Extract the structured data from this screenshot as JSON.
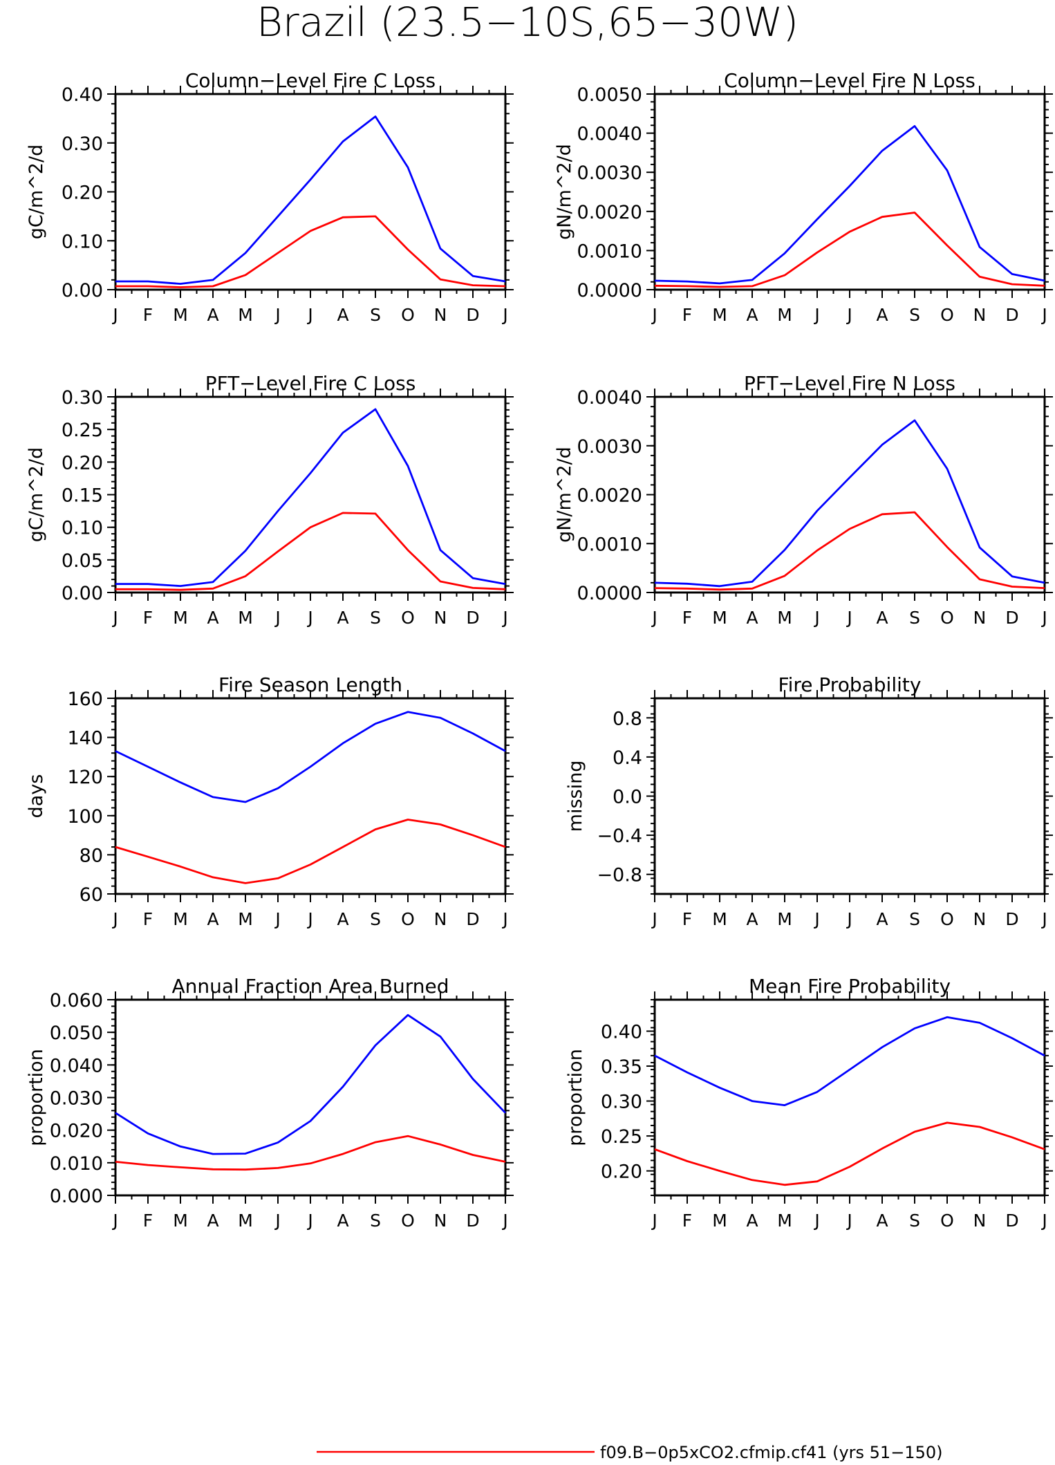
{
  "figure": {
    "title": "Brazil (23.5−10S,65−30W)",
    "legend_label": "f09.B−0p5xCO2.cfmip.cf41 (yrs 51−150)",
    "months": [
      "J",
      "F",
      "M",
      "A",
      "M",
      "J",
      "J",
      "A",
      "S",
      "O",
      "N",
      "D",
      "J"
    ]
  },
  "colors": {
    "blue": "#0000ff",
    "red": "#ff0000",
    "axis": "#000000"
  },
  "chart_data": [
    {
      "type": "line",
      "title": "Column−Level Fire C Loss",
      "ylabel": "gC/m^2/d",
      "ylim": [
        0,
        0.4
      ],
      "yticks": [
        "0.00",
        "0.10",
        "0.20",
        "0.30",
        "0.40"
      ],
      "x": [
        "J",
        "F",
        "M",
        "A",
        "M",
        "J",
        "J",
        "A",
        "S",
        "O",
        "N",
        "D",
        "J"
      ],
      "series": [
        {
          "color": "#0000ff",
          "values": [
            0.017,
            0.017,
            0.012,
            0.02,
            0.075,
            0.15,
            0.225,
            0.303,
            0.354,
            0.25,
            0.084,
            0.028,
            0.017
          ]
        },
        {
          "color": "#ff0000",
          "values": [
            0.007,
            0.007,
            0.005,
            0.007,
            0.03,
            0.075,
            0.12,
            0.148,
            0.15,
            0.082,
            0.021,
            0.009,
            0.007
          ]
        }
      ]
    },
    {
      "type": "line",
      "title": "Column−Level Fire N Loss",
      "ylabel": "gN/m^2/d",
      "ylim": [
        0,
        0.005
      ],
      "yticks": [
        "0.0000",
        "0.0010",
        "0.0020",
        "0.0030",
        "0.0040",
        "0.0050"
      ],
      "x": [
        "J",
        "F",
        "M",
        "A",
        "M",
        "J",
        "J",
        "A",
        "S",
        "O",
        "N",
        "D",
        "J"
      ],
      "series": [
        {
          "color": "#0000ff",
          "values": [
            0.00023,
            0.00021,
            0.00016,
            0.00025,
            0.00093,
            0.0018,
            0.00265,
            0.00355,
            0.00418,
            0.00305,
            0.00109,
            0.0004,
            0.00023
          ]
        },
        {
          "color": "#ff0000",
          "values": [
            0.0001,
            9e-05,
            7e-05,
            9e-05,
            0.00037,
            0.00095,
            0.00148,
            0.00186,
            0.00197,
            0.00113,
            0.00033,
            0.00014,
            0.0001
          ]
        }
      ]
    },
    {
      "type": "line",
      "title": "PFT−Level Fire C Loss",
      "ylabel": "gC/m^2/d",
      "ylim": [
        0,
        0.3
      ],
      "yticks": [
        "0.00",
        "0.05",
        "0.10",
        "0.15",
        "0.20",
        "0.25",
        "0.30"
      ],
      "x": [
        "J",
        "F",
        "M",
        "A",
        "M",
        "J",
        "J",
        "A",
        "S",
        "O",
        "N",
        "D",
        "J"
      ],
      "series": [
        {
          "color": "#0000ff",
          "values": [
            0.013,
            0.013,
            0.01,
            0.016,
            0.064,
            0.125,
            0.183,
            0.245,
            0.281,
            0.194,
            0.065,
            0.022,
            0.013
          ]
        },
        {
          "color": "#ff0000",
          "values": [
            0.005,
            0.005,
            0.004,
            0.006,
            0.025,
            0.063,
            0.1,
            0.122,
            0.121,
            0.065,
            0.017,
            0.007,
            0.005
          ]
        }
      ]
    },
    {
      "type": "line",
      "title": "PFT−Level Fire N Loss",
      "ylabel": "gN/m^2/d",
      "ylim": [
        0,
        0.004
      ],
      "yticks": [
        "0.0000",
        "0.0010",
        "0.0020",
        "0.0030",
        "0.0040"
      ],
      "x": [
        "J",
        "F",
        "M",
        "A",
        "M",
        "J",
        "J",
        "A",
        "S",
        "O",
        "N",
        "D",
        "J"
      ],
      "series": [
        {
          "color": "#0000ff",
          "values": [
            0.0002,
            0.00018,
            0.00013,
            0.00022,
            0.00087,
            0.00167,
            0.00235,
            0.00302,
            0.00352,
            0.00253,
            0.00092,
            0.00033,
            0.0002
          ]
        },
        {
          "color": "#ff0000",
          "values": [
            9e-05,
            8e-05,
            6e-05,
            8e-05,
            0.00034,
            0.00086,
            0.0013,
            0.0016,
            0.00164,
            0.00093,
            0.00027,
            0.00012,
            9e-05
          ]
        }
      ]
    },
    {
      "type": "line",
      "title": "Fire Season Length",
      "ylabel": "days",
      "ylim": [
        60,
        160
      ],
      "yticks": [
        "60",
        "80",
        "100",
        "120",
        "140",
        "160"
      ],
      "x": [
        "J",
        "F",
        "M",
        "A",
        "M",
        "J",
        "J",
        "A",
        "S",
        "O",
        "N",
        "D",
        "J"
      ],
      "series": [
        {
          "color": "#0000ff",
          "values": [
            133,
            125,
            117,
            109.5,
            107,
            114,
            125,
            137,
            147,
            153,
            150,
            142,
            133
          ]
        },
        {
          "color": "#ff0000",
          "values": [
            84,
            79,
            74,
            68.5,
            65.5,
            68,
            75,
            84,
            93,
            98,
            95.5,
            90,
            84
          ]
        }
      ]
    },
    {
      "type": "line",
      "title": "Fire Probability",
      "ylabel": "missing",
      "ylim": [
        -1,
        1
      ],
      "yticks": [
        "−0.8",
        "−0.4",
        "0.0",
        "0.4",
        "0.8"
      ],
      "x": [
        "J",
        "F",
        "M",
        "A",
        "M",
        "J",
        "J",
        "A",
        "S",
        "O",
        "N",
        "D",
        "J"
      ],
      "series": []
    },
    {
      "type": "line",
      "title": "Annual Fraction Area Burned",
      "ylabel": "proportion",
      "ylim": [
        0,
        0.06
      ],
      "yticks": [
        "0.000",
        "0.010",
        "0.020",
        "0.030",
        "0.040",
        "0.050",
        "0.060"
      ],
      "x": [
        "J",
        "F",
        "M",
        "A",
        "M",
        "J",
        "J",
        "A",
        "S",
        "O",
        "N",
        "D",
        "J"
      ],
      "series": [
        {
          "color": "#0000ff",
          "values": [
            0.0253,
            0.019,
            0.015,
            0.0127,
            0.0128,
            0.0162,
            0.0228,
            0.0333,
            0.046,
            0.0553,
            0.0487,
            0.0357,
            0.0253
          ]
        },
        {
          "color": "#ff0000",
          "values": [
            0.0103,
            0.0093,
            0.0086,
            0.008,
            0.0079,
            0.0084,
            0.0098,
            0.0127,
            0.0163,
            0.0182,
            0.0156,
            0.0124,
            0.0103
          ]
        }
      ]
    },
    {
      "type": "line",
      "title": "Mean Fire Probability",
      "ylabel": "proportion",
      "ylim": [
        0.165,
        0.445
      ],
      "yticks": [
        "0.20",
        "0.25",
        "0.30",
        "0.35",
        "0.40"
      ],
      "x": [
        "J",
        "F",
        "M",
        "A",
        "M",
        "J",
        "J",
        "A",
        "S",
        "O",
        "N",
        "D",
        "J"
      ],
      "series": [
        {
          "color": "#0000ff",
          "values": [
            0.365,
            0.341,
            0.319,
            0.3,
            0.294,
            0.313,
            0.345,
            0.377,
            0.404,
            0.42,
            0.412,
            0.39,
            0.365
          ]
        },
        {
          "color": "#ff0000",
          "values": [
            0.231,
            0.214,
            0.2,
            0.187,
            0.18,
            0.185,
            0.206,
            0.232,
            0.256,
            0.269,
            0.263,
            0.248,
            0.231
          ]
        }
      ]
    }
  ]
}
